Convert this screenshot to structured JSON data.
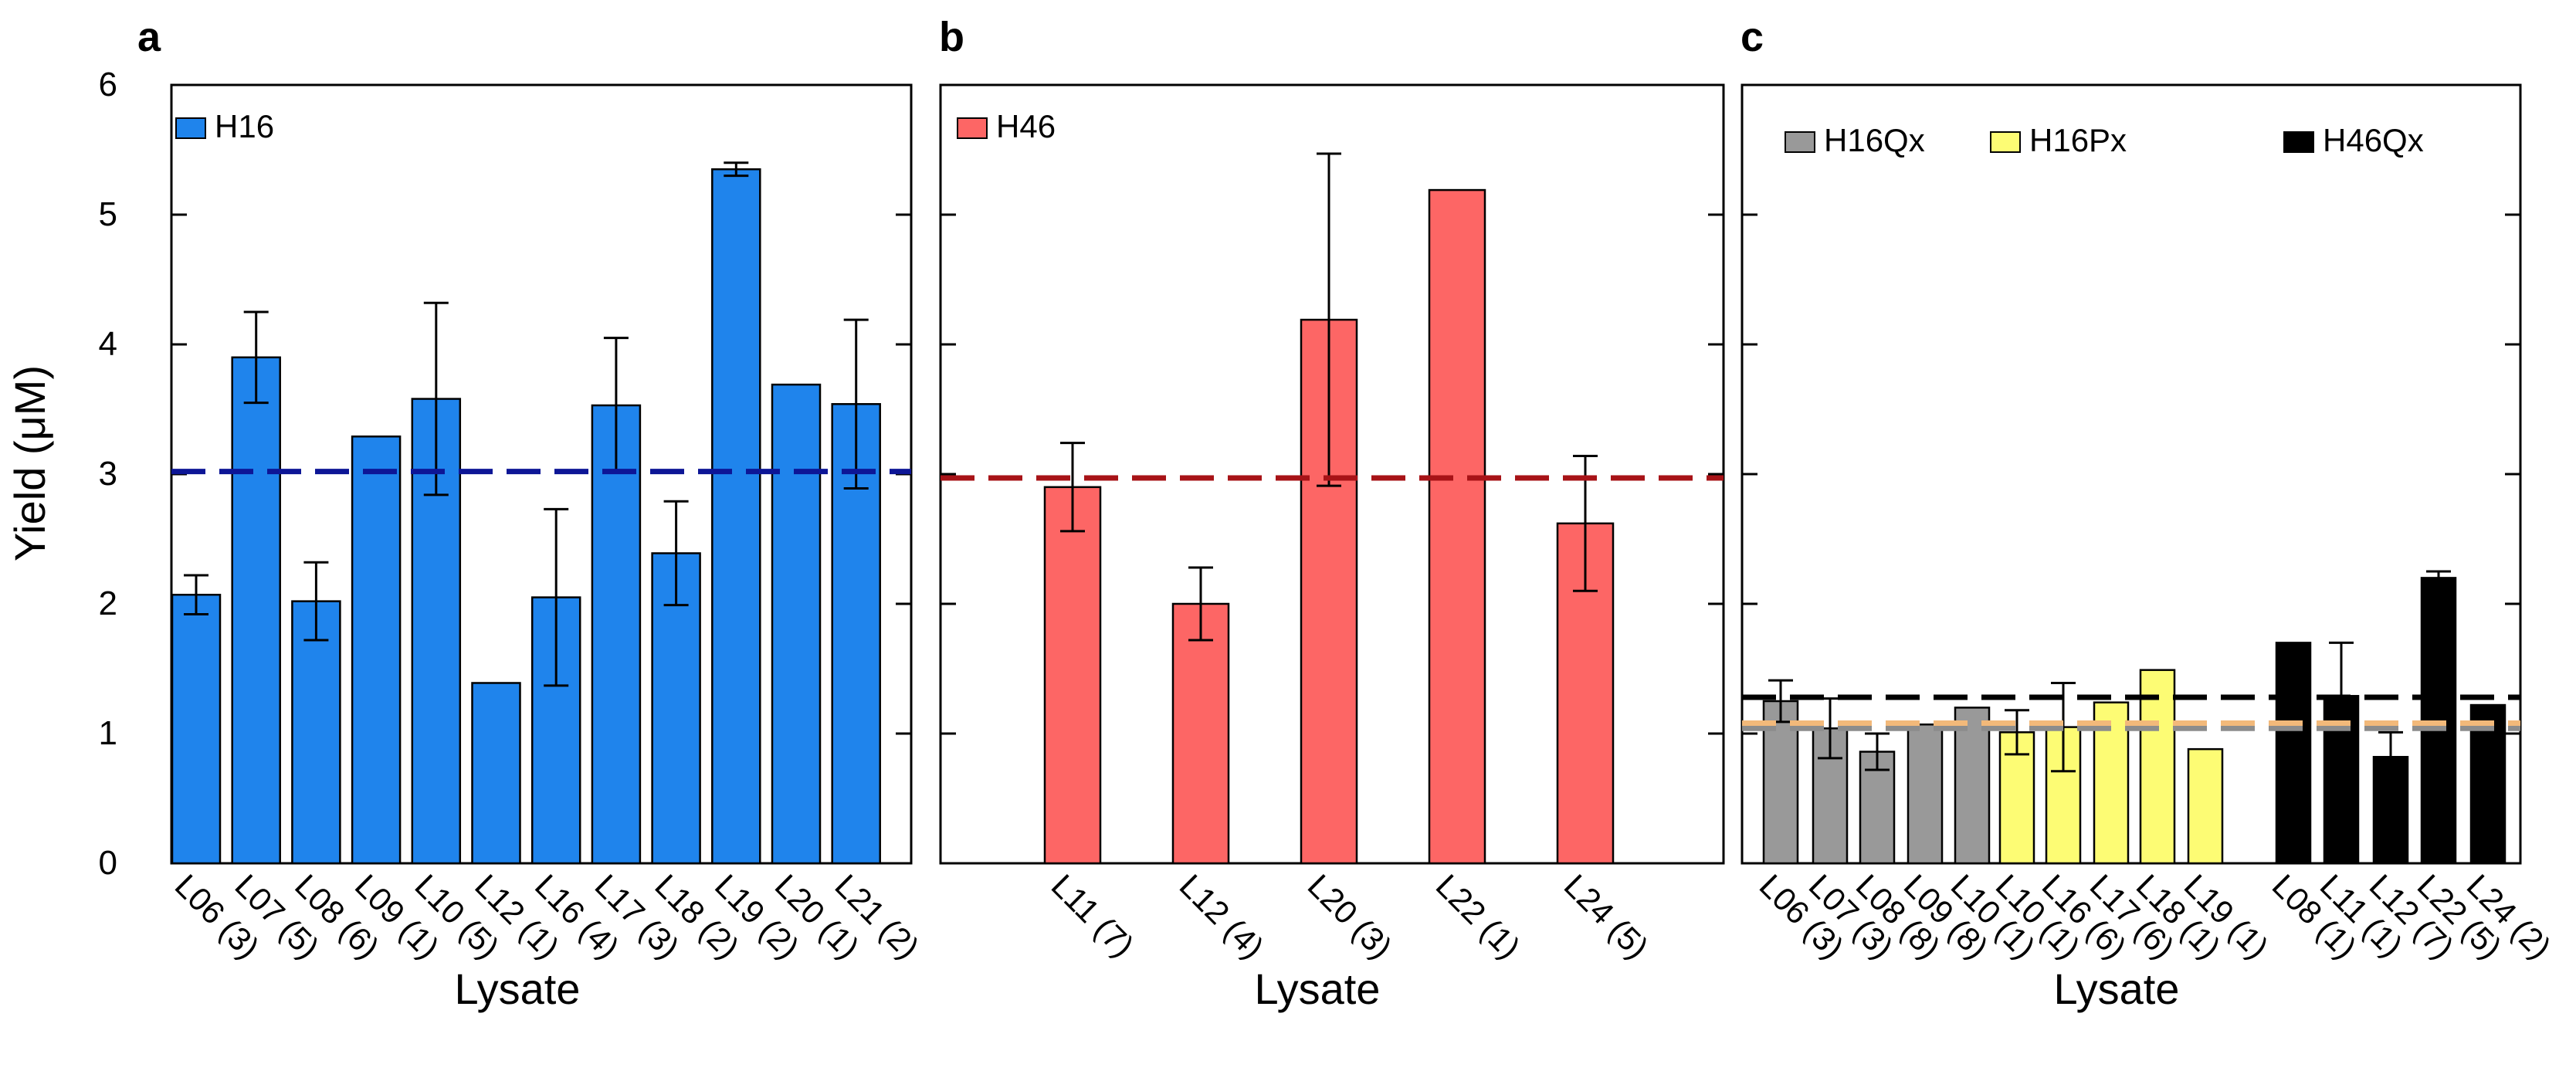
{
  "figure": {
    "ylabel": "Yield (μM)",
    "xlabel": "Lysate",
    "ylim": [
      0,
      6
    ],
    "yticks": [
      "0",
      "1",
      "2",
      "3",
      "4",
      "5",
      "6"
    ]
  },
  "chart_data": [
    {
      "type": "bar",
      "panel_label": "a",
      "title": "",
      "xlabel": "Lysate",
      "ylabel": "Yield (μM)",
      "ylim": [
        0,
        6
      ],
      "legend_position": "top-left",
      "series": [
        {
          "name": "H16",
          "color": "#1f84ec",
          "categories": [
            "L06 (3)",
            "L07 (5)",
            "L08 (6)",
            "L09 (1)",
            "L10 (5)",
            "L12 (1)",
            "L16 (4)",
            "L17 (3)",
            "L18 (2)",
            "L19 (2)",
            "L20 (1)",
            "L21 (2)"
          ],
          "values": [
            2.07,
            3.9,
            2.02,
            3.29,
            3.58,
            1.39,
            2.05,
            3.53,
            2.39,
            5.35,
            3.69,
            3.54
          ],
          "errors": [
            0.15,
            0.35,
            0.3,
            0,
            0.74,
            0,
            0.68,
            0.52,
            0.4,
            0.05,
            0,
            0.65
          ]
        }
      ],
      "mean_line": {
        "value": 3.02,
        "color": "#0d1696"
      }
    },
    {
      "type": "bar",
      "panel_label": "b",
      "title": "",
      "xlabel": "Lysate",
      "ylabel": "",
      "ylim": [
        0,
        6
      ],
      "legend_position": "top-left",
      "series": [
        {
          "name": "H46",
          "color": "#fd6665",
          "categories": [
            "L11 (7)",
            "L12 (4)",
            "L20 (3)",
            "L22 (1)",
            "L24 (5)"
          ],
          "values": [
            2.9,
            2.0,
            4.19,
            5.19,
            2.62
          ],
          "errors": [
            0.34,
            0.28,
            1.28,
            0,
            0.52
          ]
        }
      ],
      "mean_line": {
        "value": 2.97,
        "color": "#a71317"
      }
    },
    {
      "type": "bar",
      "panel_label": "c",
      "title": "",
      "xlabel": "Lysate",
      "ylabel": "",
      "ylim": [
        0,
        6
      ],
      "legend_position": "top",
      "series": [
        {
          "name": "H16Qx",
          "color": "#999999",
          "categories": [
            "L06 (3)",
            "L07 (3)",
            "L08 (8)",
            "L09 (8)",
            "L10 (1)"
          ],
          "values": [
            1.25,
            1.04,
            0.86,
            1.07,
            1.2
          ],
          "errors": [
            0.16,
            0.23,
            0.14,
            0,
            0
          ]
        },
        {
          "name": "H16Px",
          "color": "#fdfc74",
          "categories": [
            "L10 (1)",
            "L16 (6)",
            "L17 (6)",
            "L18 (1)",
            "L19 (1)"
          ],
          "values": [
            1.01,
            1.05,
            1.24,
            1.49,
            0.88
          ],
          "errors": [
            0.17,
            0.34,
            0,
            0,
            0
          ]
        },
        {
          "name": "H46Qx",
          "color": "#000000",
          "categories": [
            "L08 (1)",
            "L11 (1)",
            "L12 (7)",
            "L22 (5)",
            "L24 (2)"
          ],
          "values": [
            1.7,
            1.29,
            0.82,
            2.2,
            1.22
          ],
          "errors": [
            0,
            0.41,
            0.19,
            0.05,
            0
          ]
        }
      ],
      "mean_lines": [
        {
          "value": 1.04,
          "color": "#8c8c8c"
        },
        {
          "value": 1.08,
          "color": "#f2b97a"
        },
        {
          "value": 1.28,
          "color": "#000000"
        }
      ]
    }
  ]
}
